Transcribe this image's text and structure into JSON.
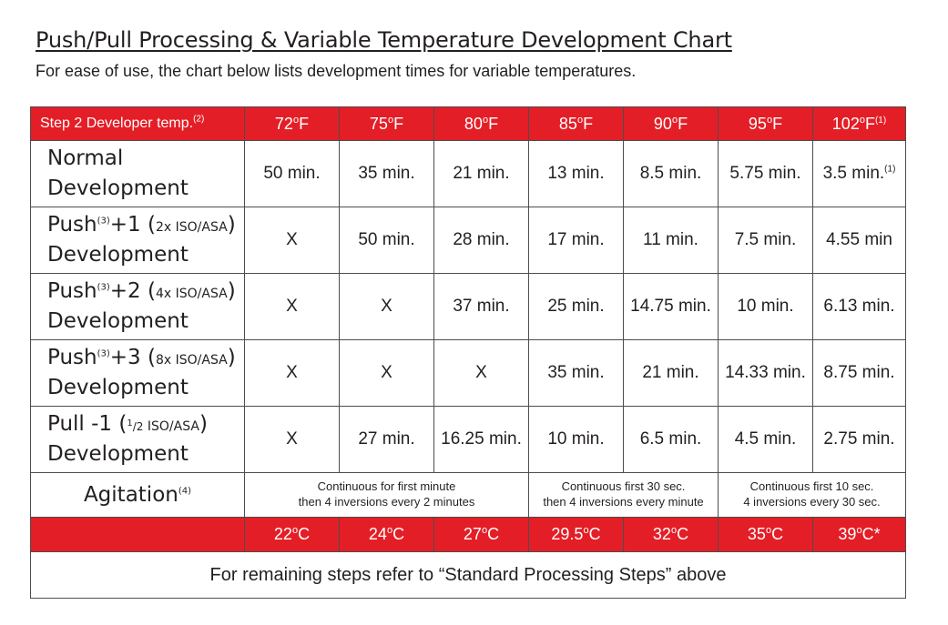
{
  "header": {
    "title": "Push/Pull Processing & Variable Temperature Development Chart",
    "subtitle": "For ease of use, the chart below lists development times for variable temperatures."
  },
  "table": {
    "corner_label": "Step 2 Developer temp.",
    "corner_sup": "(2)",
    "temps_f": [
      "72",
      "75",
      "80",
      "85",
      "90",
      "95",
      "102"
    ],
    "deg_symbol": "o",
    "f_unit": "F",
    "last_temp_sup": "(1)",
    "rows": [
      {
        "line1": "Normal",
        "suffix": "",
        "line2": "Development",
        "values": [
          "50 min.",
          "35 min.",
          "21 min.",
          "13 min.",
          "8.5 min.",
          "5.75 min.",
          "3.5 min."
        ],
        "last_sup": "(1)"
      },
      {
        "line1": "Push",
        "sup": "(3)",
        "mid": "+1 (",
        "small": "2x ISO/ASA",
        "close": ")",
        "line2": "Development",
        "values": [
          "X",
          "50 min.",
          "28 min.",
          "17 min.",
          "11 min.",
          "7.5 min.",
          "4.55 min"
        ]
      },
      {
        "line1": "Push",
        "sup": "(3)",
        "mid": "+2 (",
        "small": "4x ISO/ASA",
        "close": ")",
        "line2": "Development",
        "values": [
          "X",
          "X",
          "37 min.",
          "25 min.",
          "14.75 min.",
          "10 min.",
          "6.13 min."
        ]
      },
      {
        "line1": "Push",
        "sup": "(3)",
        "mid": "+3 (",
        "small": "8x ISO/ASA",
        "close": ")",
        "line2": "Development",
        "values": [
          "X",
          "X",
          "X",
          "35 min.",
          "21 min.",
          "14.33 min.",
          "8.75 min."
        ]
      },
      {
        "line1": "Pull -1 (",
        "frac_num": "1",
        "frac_den": "2",
        "small": " ISO/ASA",
        "close": ")",
        "line2": "Development",
        "values": [
          "X",
          "27 min.",
          "16.25 min.",
          "10 min.",
          "6.5 min.",
          "4.5 min.",
          "2.75 min."
        ]
      }
    ],
    "agitation": {
      "label": "Agitation",
      "sup": "(4)",
      "groups": [
        {
          "line1": "Continuous for first minute",
          "line2": "then 4 inversions every 2 minutes"
        },
        {
          "line1": "Continuous first 30 sec.",
          "line2": "then 4 inversions every minute"
        },
        {
          "line1": "Continuous first 10 sec.",
          "line2": "4 inversions every 30 sec."
        }
      ]
    },
    "temps_c": [
      "22",
      "24",
      "27",
      "29.5",
      "32",
      "35",
      "39"
    ],
    "c_unit": "C",
    "last_c_suffix": "*",
    "footer_note": "For remaining steps refer to “Standard Processing Steps” above"
  }
}
